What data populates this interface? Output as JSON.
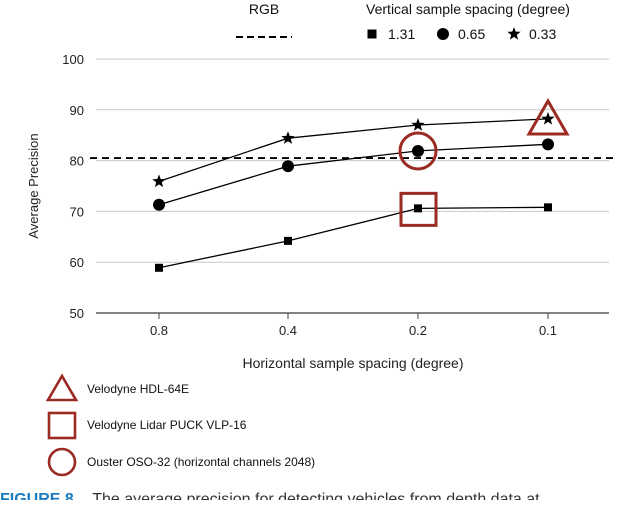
{
  "chart_data": {
    "type": "line",
    "title": "",
    "xlabel": "Horizontal sample spacing (degree)",
    "ylabel": "Average Precision",
    "categories": [
      "0.8",
      "0.4",
      "0.2",
      "0.1"
    ],
    "ylim": [
      50,
      100
    ],
    "yticks": [
      "50",
      "60",
      "70",
      "80",
      "90",
      "100"
    ],
    "grid": "horizontal",
    "reference_line": {
      "name": "RGB",
      "value": 80.5,
      "style": "dashed"
    },
    "legend_title": "Vertical sample spacing (degree)",
    "series": [
      {
        "name": "1.31",
        "marker": "square",
        "values": [
          58.9,
          64.2,
          70.6,
          70.8
        ]
      },
      {
        "name": "0.65",
        "marker": "circle",
        "values": [
          71.3,
          78.9,
          81.9,
          83.2
        ]
      },
      {
        "name": "0.33",
        "marker": "star",
        "values": [
          75.9,
          84.4,
          87.0,
          88.2
        ]
      }
    ],
    "annotations": [
      {
        "shape": "triangle",
        "label": "Velodyne HDL-64E",
        "category": "0.1",
        "value": 88.2
      },
      {
        "shape": "square",
        "label": "Velodyne Lidar PUCK VLP-16",
        "category": "0.2",
        "value": 70.6
      },
      {
        "shape": "circle",
        "label": "Ouster OSO-32 (horizontal  channels 2048)",
        "category": "0.2",
        "value": 81.9
      }
    ],
    "annotation_color": "#9b2a22"
  },
  "caption": {
    "figure": "FIGURE 8.",
    "text": "The average precision for detecting vehicles from depth data at"
  }
}
